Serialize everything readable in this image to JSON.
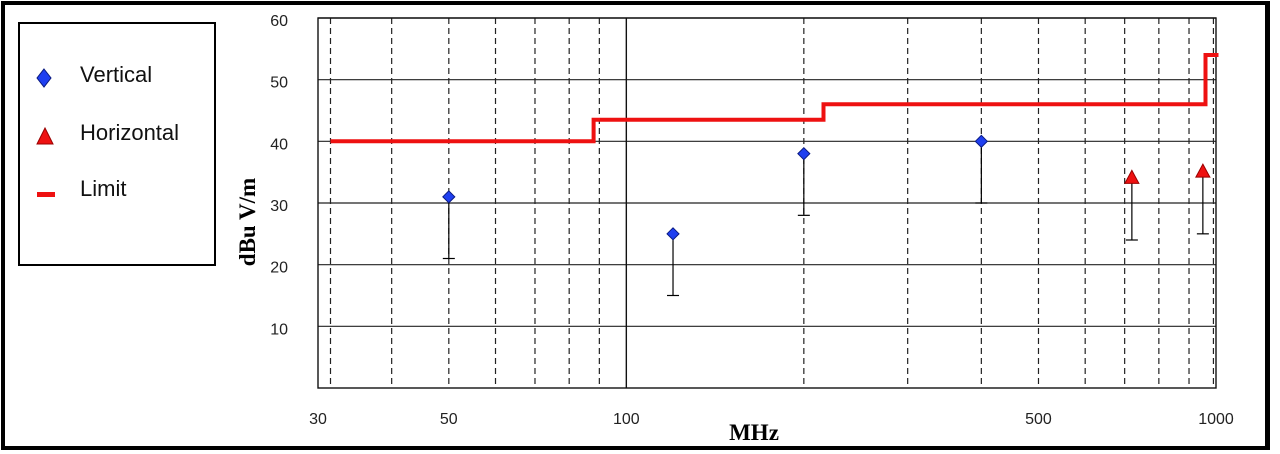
{
  "chart_data": {
    "type": "scatter",
    "title": "",
    "xlabel": "MHz",
    "ylabel": "dBu V/m",
    "x_scale": "log",
    "xlim": [
      30,
      1000
    ],
    "ylim": [
      0,
      60
    ],
    "y_ticks": [
      10,
      20,
      30,
      40,
      50,
      60
    ],
    "x_tick_labels": [
      {
        "value": 30,
        "label": "30"
      },
      {
        "value": 50,
        "label": "50"
      },
      {
        "value": 100,
        "label": "100"
      },
      {
        "value": 500,
        "label": "500"
      },
      {
        "value": 1000,
        "label": "1000"
      }
    ],
    "x_minor_gridlines": [
      40,
      60,
      70,
      80,
      90,
      200,
      300,
      400,
      600,
      700,
      800,
      900
    ],
    "grid": true,
    "legend_position": "left",
    "series": [
      {
        "name": "Vertical",
        "marker": "diamond",
        "color": "#1f3ff0",
        "points": [
          {
            "x": 50,
            "y": 31,
            "low": 21
          },
          {
            "x": 120,
            "y": 25,
            "low": 15
          },
          {
            "x": 200,
            "y": 38,
            "low": 28
          },
          {
            "x": 400,
            "y": 40,
            "low": 30
          }
        ]
      },
      {
        "name": "Horizontal",
        "marker": "triangle",
        "color": "#ee1111",
        "points": [
          {
            "x": 720,
            "y": 34,
            "low": 24
          },
          {
            "x": 950,
            "y": 35,
            "low": 25
          }
        ]
      }
    ],
    "limit": {
      "name": "Limit",
      "color": "#ee1111",
      "steps": [
        {
          "from": 30,
          "to": 88,
          "y": 40
        },
        {
          "from": 88,
          "to": 216,
          "y": 43.5
        },
        {
          "from": 216,
          "to": 960,
          "y": 46
        },
        {
          "from": 960,
          "to": 1000,
          "y": 54
        }
      ]
    }
  },
  "legend": {
    "vertical_label": "Vertical",
    "horizontal_label": "Horizontal",
    "limit_label": "Limit"
  }
}
